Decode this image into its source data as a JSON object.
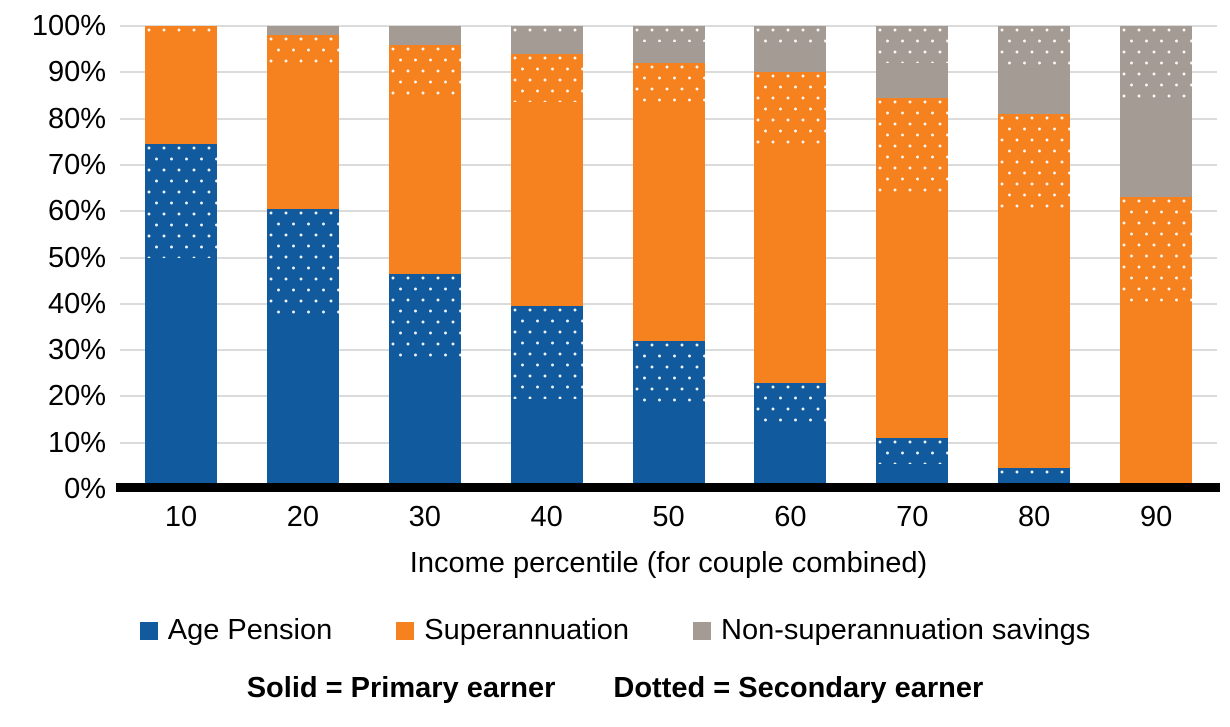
{
  "chart_data": {
    "type": "bar",
    "stacked": true,
    "percent_stacked": true,
    "grid": true,
    "legend_position": "bottom",
    "title": "",
    "xlabel": "Income percentile (for couple combined)",
    "ylabel": "",
    "ylim": [
      0,
      100
    ],
    "ytick_labels": [
      "0%",
      "10%",
      "20%",
      "30%",
      "40%",
      "50%",
      "60%",
      "70%",
      "80%",
      "90%",
      "100%"
    ],
    "categories": [
      "10",
      "20",
      "30",
      "40",
      "50",
      "60",
      "70",
      "80",
      "90"
    ],
    "series": [
      {
        "name": "Age Pension — Primary earner (solid)",
        "group": "Age Pension",
        "pattern": "solid",
        "color": "#115A9E",
        "values": [
          50,
          37,
          28,
          19.5,
          18,
          13.5,
          5.5,
          2.5,
          0
        ]
      },
      {
        "name": "Age Pension — Secondary earner (dotted)",
        "group": "Age Pension",
        "pattern": "dotted",
        "color": "#115A9E",
        "values": [
          24.5,
          23.5,
          18.5,
          20,
          14,
          9.5,
          5.5,
          2,
          0
        ]
      },
      {
        "name": "Superannuation — Primary earner (solid)",
        "group": "Superannuation",
        "pattern": "solid",
        "color": "#F5821F",
        "values": [
          23.5,
          30.5,
          38,
          44,
          50,
          50.5,
          53,
          55,
          40
        ]
      },
      {
        "name": "Superannuation — Secondary earner (dotted)",
        "group": "Superannuation",
        "pattern": "dotted",
        "color": "#F5821F",
        "values": [
          2,
          7,
          11.5,
          10.5,
          10,
          16.5,
          20.5,
          21.5,
          23
        ]
      },
      {
        "name": "Non-superannuation savings — Primary earner (solid)",
        "group": "Non-superannuation savings",
        "pattern": "solid",
        "color": "#A39B94",
        "values": [
          0,
          2,
          4,
          4,
          4.5,
          6,
          7.5,
          9,
          20.5
        ]
      },
      {
        "name": "Non-superannuation savings — Secondary earner (dotted)",
        "group": "Non-superannuation savings",
        "pattern": "dotted",
        "color": "#A39B94",
        "values": [
          0,
          0,
          0,
          2,
          3.5,
          4,
          8,
          10,
          16.5
        ]
      }
    ],
    "legend": [
      {
        "label": "Age Pension",
        "color": "#115A9E"
      },
      {
        "label": "Superannuation",
        "color": "#F5821F"
      },
      {
        "label": "Non-superannuation savings",
        "color": "#A39B94"
      }
    ],
    "footnote": {
      "solid": "Solid = Primary earner",
      "dotted": "Dotted = Secondary earner"
    },
    "style_colors": {
      "background": "#FFFFFF",
      "gridline": "#DBDBDB",
      "axis_line": "#000000",
      "text": "#000000",
      "dot": "#FFFFFF"
    }
  }
}
